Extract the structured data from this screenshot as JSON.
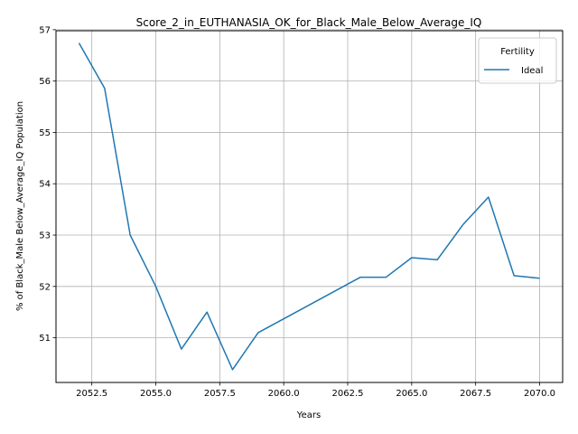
{
  "chart_data": {
    "type": "line",
    "title": "Score_2_in_EUTHANASIA_OK_for_Black_Male_Below_Average_IQ",
    "xlabel": "Years",
    "ylabel": "% of Black_Male Below_Average_IQ Population",
    "xlim": [
      2051.1,
      2070.9
    ],
    "ylim": [
      50.13,
      56.98
    ],
    "xticks": [
      2052.5,
      2055.0,
      2057.5,
      2060.0,
      2062.5,
      2065.0,
      2067.5,
      2070.0
    ],
    "xtick_labels": [
      "2052.5",
      "2055.0",
      "2057.5",
      "2060.0",
      "2062.5",
      "2065.0",
      "2067.5",
      "2070.0"
    ],
    "yticks": [
      51,
      52,
      53,
      54,
      55,
      56,
      57
    ],
    "ytick_labels": [
      "51",
      "52",
      "53",
      "54",
      "55",
      "56",
      "57"
    ],
    "grid": true,
    "legend": {
      "title": "Fertility",
      "position": "top-right"
    },
    "series": [
      {
        "name": "Ideal",
        "color": "#1f77b4",
        "x": [
          2052,
          2053,
          2054,
          2055,
          2056,
          2057,
          2058,
          2059,
          2063,
          2064,
          2065,
          2066,
          2067,
          2068,
          2069,
          2070
        ],
        "values": [
          56.74,
          55.86,
          53.0,
          52.0,
          50.78,
          51.5,
          50.38,
          51.1,
          52.18,
          52.18,
          52.56,
          52.52,
          53.2,
          53.74,
          52.21,
          52.16
        ]
      }
    ]
  }
}
